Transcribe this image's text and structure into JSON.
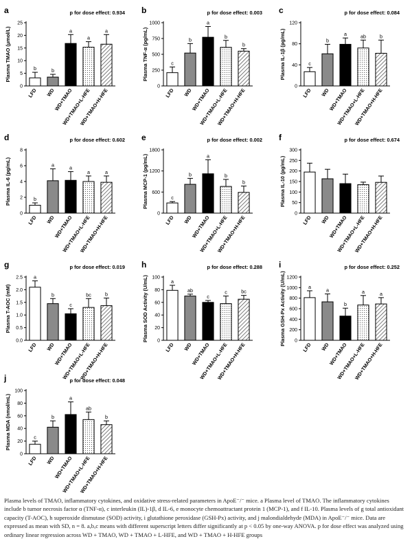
{
  "colors": {
    "LFD": "#ffffff",
    "WD": "#8c8c8c",
    "WD+TMAO": "#000000",
    "WD+TMAO+L-HFE": "dotted",
    "WD+TMAO+H-HFE": "hatched"
  },
  "chart_data": [
    {
      "type": "bar",
      "panel_letter": "a",
      "p_text": "p for dose effect: 0.934",
      "ylabel": "Plasma TMAO (μmol/L)",
      "categories": [
        "LFD",
        "WD",
        "WD+TMAO",
        "WD+TMAO+L-HFE",
        "WD+TMAO+H-HFE"
      ],
      "values": [
        3.2,
        3.5,
        16.8,
        15.3,
        16.5
      ],
      "errors": [
        2.2,
        1.1,
        3.5,
        2.2,
        3.8
      ],
      "letters": [
        "b",
        "b",
        "a",
        "a",
        "a"
      ],
      "ylim": [
        0,
        25
      ],
      "yticks": [
        "0",
        "5",
        "10",
        "15",
        "20",
        "25"
      ]
    },
    {
      "type": "bar",
      "panel_letter": "b",
      "p_text": "p for dose effect: 0.003",
      "ylabel": "Plasma TNF-α (pg/mL)",
      "categories": [
        "LFD",
        "WD",
        "WD+TMAO",
        "WD+TMAO+L-HFE",
        "WD+TMAO+H-HFE"
      ],
      "values": [
        210,
        520,
        770,
        610,
        550
      ],
      "errors": [
        90,
        150,
        170,
        110,
        40
      ],
      "letters": [
        "c",
        "b",
        "a",
        "b",
        "b"
      ],
      "ylim": [
        0,
        1000
      ],
      "yticks": [
        "0",
        "250",
        "500",
        "750",
        "1000"
      ]
    },
    {
      "type": "bar",
      "panel_letter": "c",
      "p_text": "p for dose effect: 0.084",
      "ylabel": "Plasma IL-1β (pg/mL)",
      "categories": [
        "LFD",
        "WD",
        "WD+TMAO",
        "WD+TMAO+L-HFE",
        "WD+TMAO+H-HFE"
      ],
      "values": [
        27,
        61,
        79,
        72,
        62
      ],
      "errors": [
        8,
        18,
        12,
        15,
        25
      ],
      "letters": [
        "c",
        "b",
        "a",
        "ab",
        "b"
      ],
      "ylim": [
        0,
        120
      ],
      "yticks": [
        "0",
        "40",
        "80",
        "120"
      ]
    },
    {
      "type": "bar",
      "panel_letter": "d",
      "p_text": "p for dose effect: 0.602",
      "ylabel": "Plasma IL-6 (pg/mL)",
      "categories": [
        "LFD",
        "WD",
        "WD+TMAO",
        "WD+TMAO+L-HFE",
        "WD+TMAO+H-HFE"
      ],
      "values": [
        1.0,
        4.1,
        4.15,
        4.0,
        3.9
      ],
      "errors": [
        0.3,
        1.5,
        1.1,
        0.7,
        0.8
      ],
      "letters": [
        "b",
        "a",
        "a",
        "a",
        "a"
      ],
      "ylim": [
        0,
        8
      ],
      "yticks": [
        "0",
        "2",
        "4",
        "6",
        "8"
      ]
    },
    {
      "type": "bar",
      "panel_letter": "e",
      "p_text": "p for dose effect: 0.002",
      "ylabel": "Plasma MCP-1 (pg/mL)",
      "categories": [
        "LFD",
        "WD",
        "WD+TMAO",
        "WD+TMAO+L-HFE",
        "WD+TMAO+H-HFE"
      ],
      "values": [
        290,
        820,
        1120,
        760,
        590
      ],
      "errors": [
        40,
        170,
        400,
        200,
        180
      ],
      "letters": [
        "c",
        "b",
        "a",
        "b",
        "b"
      ],
      "ylim": [
        0,
        1800
      ],
      "yticks": [
        "0",
        "600",
        "1200",
        "1800"
      ]
    },
    {
      "type": "bar",
      "panel_letter": "f",
      "p_text": "p for dose effect: 0.674",
      "ylabel": "Plasma IL-10 (pg/mL)",
      "categories": [
        "LFD",
        "WD",
        "WD+TMAO",
        "WD+TMAO+L-HFE",
        "WD+TMAO+H-HFE"
      ],
      "values": [
        195,
        163,
        140,
        135,
        146
      ],
      "errors": [
        42,
        45,
        45,
        12,
        30
      ],
      "letters": [
        "",
        "",
        "",
        "",
        ""
      ],
      "ylim": [
        0,
        300
      ],
      "yticks": [
        "0",
        "50",
        "100",
        "150",
        "200",
        "250",
        "300"
      ]
    },
    {
      "type": "bar",
      "panel_letter": "g",
      "p_text": "p for dose effect: 0.019",
      "ylabel": "Plasma T-AOC (mM)",
      "categories": [
        "LFD",
        "WD",
        "WD+TMAO",
        "WD+TMAO+L-HFE",
        "WD+TMAO+H-HFE"
      ],
      "values": [
        2.1,
        1.45,
        1.05,
        1.3,
        1.37
      ],
      "errors": [
        0.25,
        0.2,
        0.2,
        0.35,
        0.3
      ],
      "letters": [
        "a",
        "b",
        "c",
        "bc",
        "b"
      ],
      "ylim": [
        0,
        2.5
      ],
      "yticks": [
        "0.0",
        "0.5",
        "1.0",
        "1.5",
        "2.0",
        "2.5"
      ]
    },
    {
      "type": "bar",
      "panel_letter": "h",
      "p_text": "p for dose effect: 0.288",
      "ylabel": "Plasma SOD Activity (U/mL)",
      "categories": [
        "LFD",
        "WD",
        "WD+TMAO",
        "WD+TMAO+L-HFE",
        "WD+TMAO+H-HFE"
      ],
      "values": [
        79,
        70,
        60,
        58,
        65
      ],
      "errors": [
        8,
        3,
        3,
        12,
        6
      ],
      "letters": [
        "a",
        "ab",
        "c",
        "c",
        "bc"
      ],
      "ylim": [
        0,
        100
      ],
      "yticks": [
        "0",
        "20",
        "40",
        "60",
        "80",
        "100"
      ]
    },
    {
      "type": "bar",
      "panel_letter": "i",
      "p_text": "p for dose effect: 0.252",
      "ylabel": "Plasma GSH-Px Activity (U/mL)",
      "categories": [
        "LFD",
        "WD",
        "WD+TMAO",
        "WD+TMAO+L-HFE",
        "WD+TMAO+H-HFE"
      ],
      "values": [
        810,
        730,
        460,
        670,
        690
      ],
      "errors": [
        130,
        150,
        150,
        180,
        120
      ],
      "letters": [
        "a",
        "a",
        "b",
        "a",
        "a"
      ],
      "ylim": [
        0,
        1200
      ],
      "yticks": [
        "0",
        "200",
        "400",
        "600",
        "800",
        "1000",
        "1200"
      ]
    },
    {
      "type": "bar",
      "panel_letter": "j",
      "p_text": "p for dose effect: 0.048",
      "ylabel": "Plasma MDA (nmol/mL)",
      "categories": [
        "LFD",
        "WD",
        "WD+TMAO",
        "WD+TMAO+L-HFE",
        "WD+TMAO+H-HFE"
      ],
      "values": [
        15,
        42,
        62,
        54,
        46
      ],
      "errors": [
        5,
        10,
        20,
        12,
        6
      ],
      "letters": [
        "c",
        "b",
        "a",
        "ab",
        "b"
      ],
      "ylim": [
        0,
        100
      ],
      "yticks": [
        "0",
        "20",
        "40",
        "60",
        "80",
        "100"
      ]
    }
  ],
  "caption": "Plasma levels of TMAO, inflammatory cytokines, and oxidative stress-related parameters in ApoE⁻/⁻ mice. a Plasma level of TMAO. The inflammatory cytokines include b tumor necrosis factor α (TNF-α), c interleukin (IL)-1β, d IL-6, e monocyte chemoattractant protein 1 (MCP-1), and f IL-10. Plasma levels of g total antioxidant capacity (T-AOC), h superoxide dismutase (SOD) activity, i glutathione peroxidase (GSH-Px) activity, and j malondialdehyde (MDA) in ApoE⁻/⁻ mice. Data are expressed as mean with SD, n = 8. a,b,c means with different superscript letters differ significantly at p < 0.05 by one-way ANOVA. p for dose effect was analyzed using ordinary linear regression across WD + TMAO, WD + TMAO + L-HFE, and WD + TMAO + H-HFE groups"
}
